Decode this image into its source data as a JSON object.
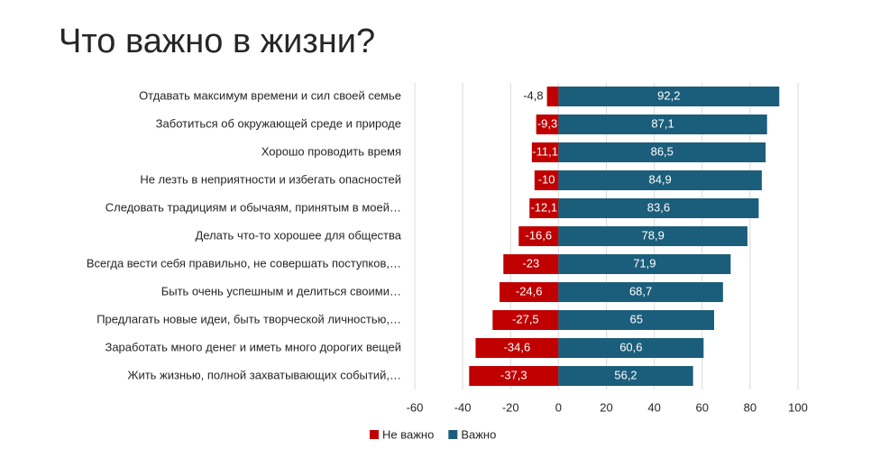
{
  "chart_data": {
    "type": "diverging-bar",
    "title": "Что важно в жизни?",
    "categories": [
      "Отдавать максимум времени и сил своей семье",
      "Заботиться об окружающей среде и природе",
      "Хорошо проводить время",
      "Не лезть в неприятности и избегать опасностей",
      "Следовать традициям и обычаям, принятым в моей…",
      "Делать что-то хорошее для общества",
      "Всегда вести себя правильно, не совершать поступков,…",
      "Быть очень успешным и делиться своими…",
      "Предлагать новые идеи, быть творческой личностью,…",
      "Заработать много денег и иметь много дорогих вещей",
      "Жить жизнью, полной захватывающих событий,…"
    ],
    "series": [
      {
        "name": "Не важно",
        "color": "#c00000",
        "values": [
          -4.8,
          -9.3,
          -11.1,
          -10,
          -12.1,
          -16.6,
          -23,
          -24.6,
          -27.5,
          -34.6,
          -37.3
        ],
        "value_labels": [
          "-4,8",
          "-9,3",
          "-11,1",
          "-10",
          "-12,1",
          "-16,6",
          "-23",
          "-24,6",
          "-27,5",
          "-34,6",
          "-37,3"
        ]
      },
      {
        "name": "Важно",
        "color": "#1b5e7b",
        "values": [
          92.2,
          87.1,
          86.5,
          84.9,
          83.6,
          78.9,
          71.9,
          68.7,
          65,
          60.6,
          56.2
        ],
        "value_labels": [
          "92,2",
          "87,1",
          "86,5",
          "84,9",
          "83,6",
          "78,9",
          "71,9",
          "68,7",
          "65",
          "60,6",
          "56,2"
        ]
      }
    ],
    "xlim": [
      -60,
      100
    ],
    "xticks": [
      -60,
      -40,
      -20,
      0,
      20,
      40,
      60,
      80,
      100
    ],
    "grid": true,
    "legend": "bottom"
  }
}
